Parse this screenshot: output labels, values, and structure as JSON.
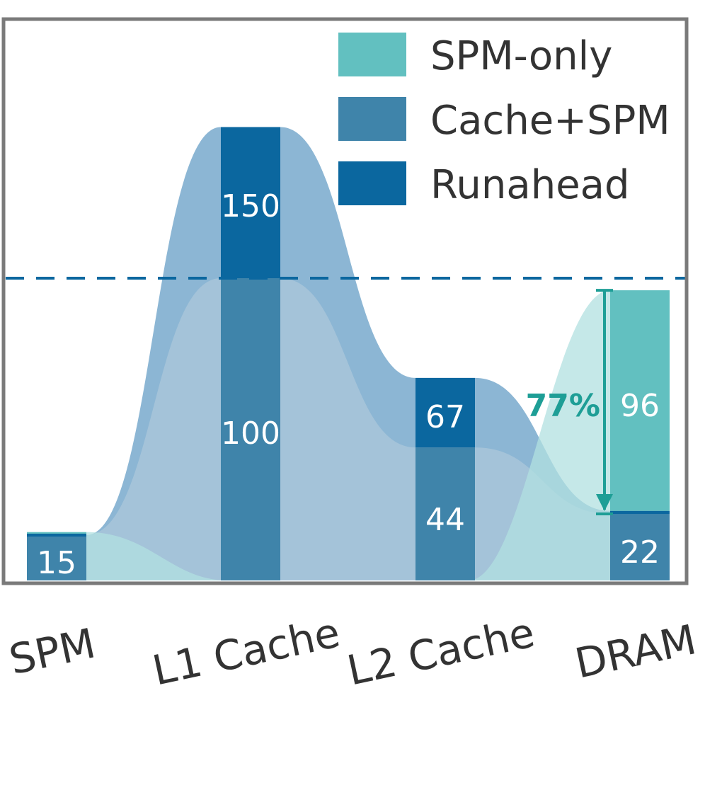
{
  "chart_data": {
    "type": "bar",
    "categories": [
      "SPM",
      "L1 Cache",
      "L2 Cache",
      "DRAM"
    ],
    "series": [
      {
        "name": "SPM-only",
        "values": [
          16,
          null,
          null,
          96
        ]
      },
      {
        "name": "Cache+SPM",
        "values": [
          15,
          100,
          44,
          22
        ]
      },
      {
        "name": "Runahead",
        "values": [
          null,
          150,
          67,
          23
        ]
      }
    ],
    "bar_labels": [
      {
        "category": "SPM",
        "text": "15"
      },
      {
        "category": "L1 Cache",
        "text": "150"
      },
      {
        "category": "L1 Cache",
        "text": "100"
      },
      {
        "category": "L2 Cache",
        "text": "67"
      },
      {
        "category": "L2 Cache",
        "text": "44"
      },
      {
        "category": "DRAM",
        "text": "96"
      },
      {
        "category": "DRAM",
        "text": "22"
      }
    ],
    "reference_line": {
      "value": 100,
      "style": "dashed"
    },
    "annotation": {
      "text": "77%",
      "from": 96,
      "to": 22,
      "category": "DRAM"
    },
    "ylim": [
      0,
      150
    ],
    "legend_position": "top-right",
    "grid": false,
    "colors": {
      "SPM-only": "#62c0c0",
      "Cache+SPM": "#3f84aa",
      "Runahead": "#0b679f",
      "flow_light": "#a5c4d9",
      "flow_mid": "#86b2d2",
      "flow_teal": "#b2e0e0",
      "annotation": "#1e9e96",
      "frame": "#7a7a7a"
    }
  }
}
